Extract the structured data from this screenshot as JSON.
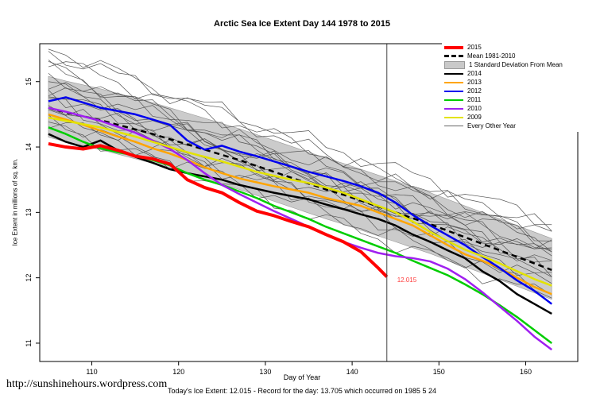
{
  "title": "Arctic Sea Ice Extent Day 144 1978 to 2015",
  "footer": {
    "note": "Today's Ice Extent: 12.015 - Record for the day: 13.705 which occurred on 1985 5 24",
    "url": "http://sunshinehours.wordpress.com"
  },
  "chart_data": {
    "type": "line",
    "title": "Arctic Sea Ice Extent Day 144 1978 to 2015",
    "xlabel": "Day of Year",
    "ylabel": "Ice Extent in millions of sq. km.",
    "x_ticks": [
      110,
      120,
      130,
      140,
      150,
      160
    ],
    "y_ticks": [
      11,
      12,
      13,
      14,
      15
    ],
    "x_range": [
      104,
      166
    ],
    "y_range": [
      10.72,
      15.58
    ],
    "grid": false,
    "legend_position": "top-right",
    "marker_day": 144,
    "annotation": {
      "text": "12.015",
      "x": 145,
      "y": 11.97,
      "color": "#FF4040"
    },
    "days": [
      105,
      107,
      109,
      111,
      113,
      115,
      117,
      119,
      121,
      123,
      125,
      127,
      129,
      131,
      133,
      135,
      137,
      139,
      141,
      143,
      145,
      147,
      149,
      151,
      153,
      155,
      157,
      159,
      161,
      163
    ],
    "mean_1981_2010": [
      14.6,
      14.53,
      14.47,
      14.41,
      14.34,
      14.27,
      14.2,
      14.12,
      14.04,
      13.96,
      13.88,
      13.8,
      13.71,
      13.62,
      13.53,
      13.44,
      13.35,
      13.27,
      13.18,
      13.09,
      13.0,
      12.91,
      12.82,
      12.72,
      12.62,
      12.52,
      12.42,
      12.32,
      12.22,
      12.12
    ],
    "sd_band": {
      "color": "#CBCBCB",
      "upper": [
        15.08,
        15.01,
        14.95,
        14.89,
        14.82,
        14.75,
        14.68,
        14.6,
        14.52,
        14.44,
        14.36,
        14.28,
        14.19,
        14.1,
        14.01,
        13.92,
        13.83,
        13.75,
        13.66,
        13.57,
        13.48,
        13.39,
        13.3,
        13.2,
        13.1,
        13.0,
        12.9,
        12.8,
        12.7,
        12.6
      ],
      "lower": [
        14.15,
        14.08,
        14.02,
        13.96,
        13.89,
        13.82,
        13.75,
        13.67,
        13.59,
        13.51,
        13.43,
        13.35,
        13.26,
        13.17,
        13.08,
        12.99,
        12.9,
        12.82,
        12.73,
        12.64,
        12.55,
        12.46,
        12.37,
        12.27,
        12.17,
        12.07,
        11.97,
        11.87,
        11.77,
        11.67
      ]
    },
    "series": [
      {
        "name": "2015",
        "color": "#FF0000",
        "width": 4,
        "days": [
          105,
          107,
          109,
          111,
          113,
          115,
          117,
          119,
          121,
          123,
          125,
          127,
          129,
          131,
          133,
          135,
          137,
          139,
          141,
          143,
          144
        ],
        "values": [
          14.05,
          14.0,
          13.97,
          14.02,
          13.95,
          13.86,
          13.82,
          13.74,
          13.5,
          13.38,
          13.3,
          13.15,
          13.02,
          12.95,
          12.86,
          12.78,
          12.66,
          12.55,
          12.4,
          12.15,
          12.015
        ]
      },
      {
        "name": "2014",
        "color": "#000000",
        "width": 2.5,
        "values": [
          14.2,
          14.08,
          14.0,
          14.1,
          13.95,
          13.85,
          13.76,
          13.66,
          13.6,
          13.55,
          13.5,
          13.42,
          13.36,
          13.3,
          13.25,
          13.2,
          13.12,
          13.05,
          12.97,
          12.9,
          12.8,
          12.66,
          12.55,
          12.42,
          12.3,
          12.1,
          11.95,
          11.75,
          11.6,
          11.45
        ]
      },
      {
        "name": "2013",
        "color": "#FFA500",
        "width": 2.5,
        "values": [
          14.5,
          14.42,
          14.34,
          14.25,
          14.16,
          14.08,
          13.98,
          13.9,
          13.8,
          13.69,
          13.6,
          13.52,
          13.46,
          13.4,
          13.35,
          13.3,
          13.22,
          13.16,
          13.1,
          13.0,
          12.9,
          12.8,
          12.65,
          12.5,
          12.36,
          12.26,
          12.15,
          12.0,
          11.86,
          11.75
        ]
      },
      {
        "name": "2012",
        "color": "#0000EE",
        "width": 2.5,
        "values": [
          14.7,
          14.76,
          14.68,
          14.6,
          14.55,
          14.5,
          14.42,
          14.34,
          14.1,
          13.96,
          14.02,
          13.93,
          13.86,
          13.78,
          13.7,
          13.62,
          13.55,
          13.48,
          13.4,
          13.3,
          13.15,
          12.96,
          12.8,
          12.65,
          12.5,
          12.32,
          12.15,
          11.96,
          11.8,
          11.6
        ]
      },
      {
        "name": "2011",
        "color": "#00CD00",
        "width": 2.5,
        "values": [
          14.3,
          14.2,
          14.08,
          13.98,
          13.92,
          13.87,
          13.8,
          13.72,
          13.6,
          13.5,
          13.42,
          13.32,
          13.22,
          13.1,
          13.0,
          12.9,
          12.78,
          12.68,
          12.58,
          12.48,
          12.38,
          12.26,
          12.15,
          12.04,
          11.9,
          11.75,
          11.58,
          11.4,
          11.2,
          11.0
        ]
      },
      {
        "name": "2010",
        "color": "#A020F0",
        "width": 2.5,
        "values": [
          14.6,
          14.54,
          14.47,
          14.4,
          14.31,
          14.22,
          14.1,
          13.97,
          13.8,
          13.6,
          13.42,
          13.28,
          13.15,
          13.02,
          12.9,
          12.78,
          12.66,
          12.55,
          12.46,
          12.38,
          12.33,
          12.3,
          12.25,
          12.14,
          11.98,
          11.78,
          11.56,
          11.34,
          11.1,
          10.9
        ]
      },
      {
        "name": "2009",
        "color": "#E3E300",
        "width": 2.5,
        "values": [
          14.45,
          14.4,
          14.35,
          14.3,
          14.23,
          14.16,
          14.08,
          14.0,
          13.92,
          13.85,
          13.78,
          13.7,
          13.62,
          13.56,
          13.5,
          13.45,
          13.38,
          13.3,
          13.2,
          13.1,
          13.0,
          12.86,
          12.7,
          12.56,
          12.43,
          12.33,
          12.22,
          12.1,
          11.98,
          11.88
        ]
      }
    ],
    "mean_style": {
      "color": "#000000",
      "width": 2.5,
      "dash": "7 5"
    },
    "every_other_year": {
      "color": "#555555",
      "width": 0.7,
      "lines": [
        {
          "start": 15.55,
          "end": 12.5
        },
        {
          "start": 15.35,
          "end": 12.7
        },
        {
          "start": 15.2,
          "end": 12.3
        },
        {
          "start": 15.1,
          "end": 12.6
        },
        {
          "start": 15.0,
          "end": 12.2
        },
        {
          "start": 14.95,
          "end": 12.75
        },
        {
          "start": 14.85,
          "end": 12.1
        },
        {
          "start": 14.8,
          "end": 12.45
        },
        {
          "start": 14.7,
          "end": 11.9
        },
        {
          "start": 14.65,
          "end": 12.55
        },
        {
          "start": 14.6,
          "end": 12.0
        },
        {
          "start": 14.5,
          "end": 12.35
        },
        {
          "start": 14.45,
          "end": 11.8
        },
        {
          "start": 14.4,
          "end": 12.25
        },
        {
          "start": 14.35,
          "end": 11.7
        },
        {
          "start": 15.45,
          "end": 12.85
        },
        {
          "start": 14.9,
          "end": 12.4
        },
        {
          "start": 15.25,
          "end": 12.05
        }
      ]
    },
    "legend": [
      {
        "label": "2015",
        "style": "line",
        "color": "#FF0000",
        "weight": 4
      },
      {
        "label": "Mean 1981-2010",
        "style": "dashed",
        "color": "#000000",
        "weight": 3
      },
      {
        "label": "1 Standard Deviation From Mean",
        "style": "box",
        "color": "#C9C9C9"
      },
      {
        "label": "2014",
        "style": "line",
        "color": "#000000",
        "weight": 2.5
      },
      {
        "label": "2013",
        "style": "line",
        "color": "#FFA500",
        "weight": 2.5
      },
      {
        "label": "2012",
        "style": "line",
        "color": "#0000EE",
        "weight": 2.5
      },
      {
        "label": "2011",
        "style": "line",
        "color": "#00CD00",
        "weight": 2.5
      },
      {
        "label": "2010",
        "style": "line",
        "color": "#A020F0",
        "weight": 2.5
      },
      {
        "label": "2009",
        "style": "line",
        "color": "#E3E300",
        "weight": 2.5
      },
      {
        "label": "Every Other Year",
        "style": "line",
        "color": "#666666",
        "weight": 1
      }
    ]
  }
}
